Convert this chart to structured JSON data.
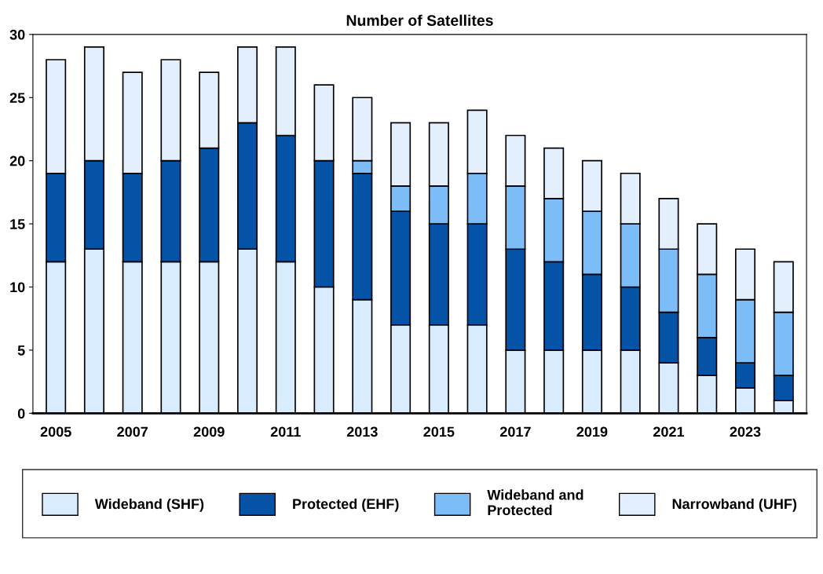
{
  "chart_data": {
    "type": "bar",
    "title": "Number of Satellites",
    "stacked": true,
    "legend": "bottom",
    "grid": false,
    "categories": [
      "2005",
      null,
      "2007",
      null,
      "2009",
      null,
      "2011",
      null,
      "2013",
      null,
      "2015",
      null,
      "2017",
      null,
      "2019",
      null,
      "2021",
      null,
      "2023",
      null
    ],
    "ylim": [
      0,
      30
    ],
    "yticks": [
      0,
      5,
      10,
      15,
      20,
      25,
      30
    ],
    "series": [
      {
        "name": "Wideband (SHF)",
        "color": "#d9ecfd",
        "values": [
          12,
          13,
          12,
          12,
          12,
          13,
          12,
          10,
          9,
          7,
          7,
          7,
          5,
          5,
          5,
          5,
          4,
          3,
          2,
          1
        ]
      },
      {
        "name": "Protected (EHF)",
        "color": "#0453a6",
        "values": [
          7,
          7,
          7,
          8,
          9,
          10,
          10,
          10,
          10,
          9,
          8,
          8,
          8,
          7,
          6,
          5,
          4,
          3,
          2,
          2
        ]
      },
      {
        "name": "Wideband and\nProtected",
        "color": "#7dbdf7",
        "values": [
          0,
          0,
          0,
          0,
          0,
          0,
          0,
          0,
          1,
          2,
          3,
          4,
          5,
          5,
          5,
          5,
          5,
          5,
          5,
          5
        ]
      },
      {
        "name": "Narrowband (UHF)",
        "color": "#e3effc",
        "values": [
          9,
          9,
          8,
          8,
          6,
          6,
          7,
          6,
          5,
          5,
          5,
          5,
          4,
          4,
          4,
          4,
          4,
          4,
          4,
          4
        ]
      }
    ]
  }
}
